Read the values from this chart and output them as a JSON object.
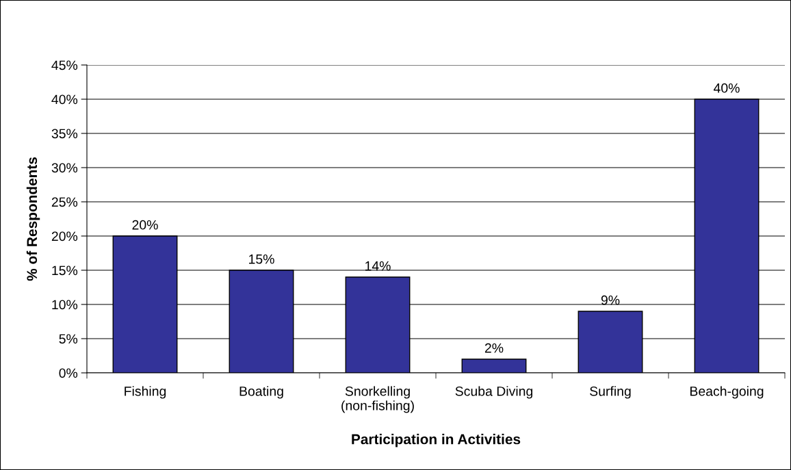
{
  "chart_data": {
    "type": "bar",
    "xlabel": "Participation in Activities",
    "ylabel": "% of Respondents",
    "categories": [
      "Fishing",
      "Boating",
      "Snorkelling\n(non-fishing)",
      "Scuba Diving",
      "Surfing",
      "Beach-going"
    ],
    "values": [
      20,
      15,
      14,
      2,
      9,
      40
    ],
    "value_labels": [
      "20%",
      "15%",
      "14%",
      "2%",
      "9%",
      "40%"
    ],
    "color": "#333399",
    "ylim": [
      0,
      45
    ],
    "yticks": [
      {
        "value": 0,
        "label": "0%"
      },
      {
        "value": 5,
        "label": "5%"
      },
      {
        "value": 10,
        "label": "10%"
      },
      {
        "value": 15,
        "label": "15%"
      },
      {
        "value": 20,
        "label": "20%"
      },
      {
        "value": 25,
        "label": "25%"
      },
      {
        "value": 30,
        "label": "30%"
      },
      {
        "value": 35,
        "label": "35%"
      },
      {
        "value": 40,
        "label": "40%"
      },
      {
        "value": 45,
        "label": "45%"
      }
    ],
    "grid": "y",
    "legend": false
  }
}
